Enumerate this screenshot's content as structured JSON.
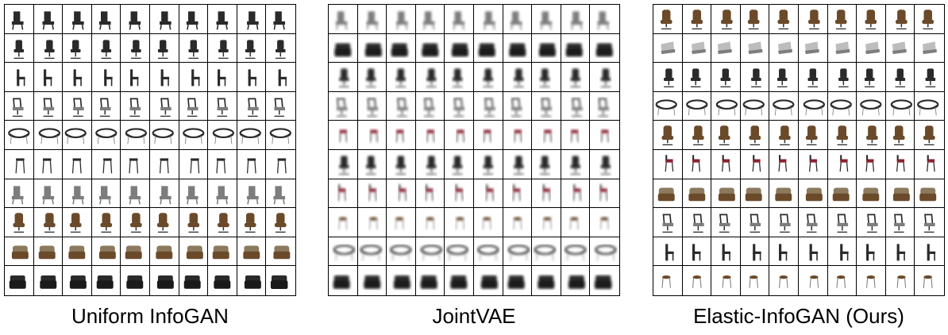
{
  "panels": [
    {
      "caption": "Uniform InfoGAN",
      "blurred": false,
      "rows": [
        "desk-chair-dark",
        "office-chair",
        "dining-chair",
        "mesh-chair",
        "wire-chair",
        "bar-stool",
        "desk-chair-gray",
        "leather-office-chair",
        "armchair-beige",
        "sofa-chair-black"
      ]
    },
    {
      "caption": "JointVAE",
      "blurred": true,
      "rows": [
        "desk-chair-gray",
        "sofa-chair-black",
        "office-chair",
        "mesh-chair",
        "red-stool",
        "office-chair",
        "red-chair",
        "small-stool",
        "wire-chair",
        "sofa-chair-black"
      ]
    },
    {
      "caption": "Elastic-InfoGAN (Ours)",
      "blurred": false,
      "rows": [
        "leather-office-chair",
        "lounge-chair-gray",
        "office-chair",
        "wire-chair",
        "leather-office-chair",
        "red-chair",
        "armchair-beige",
        "mesh-chair",
        "dining-chair",
        "small-stool"
      ]
    }
  ],
  "colors": {
    "dark": "#2a2a2a",
    "gray": "#7d7d7d",
    "light": "#bdbdbd",
    "brown": "#6b4a2a",
    "red": "#8a2330",
    "beige": "#8c7a5e"
  }
}
